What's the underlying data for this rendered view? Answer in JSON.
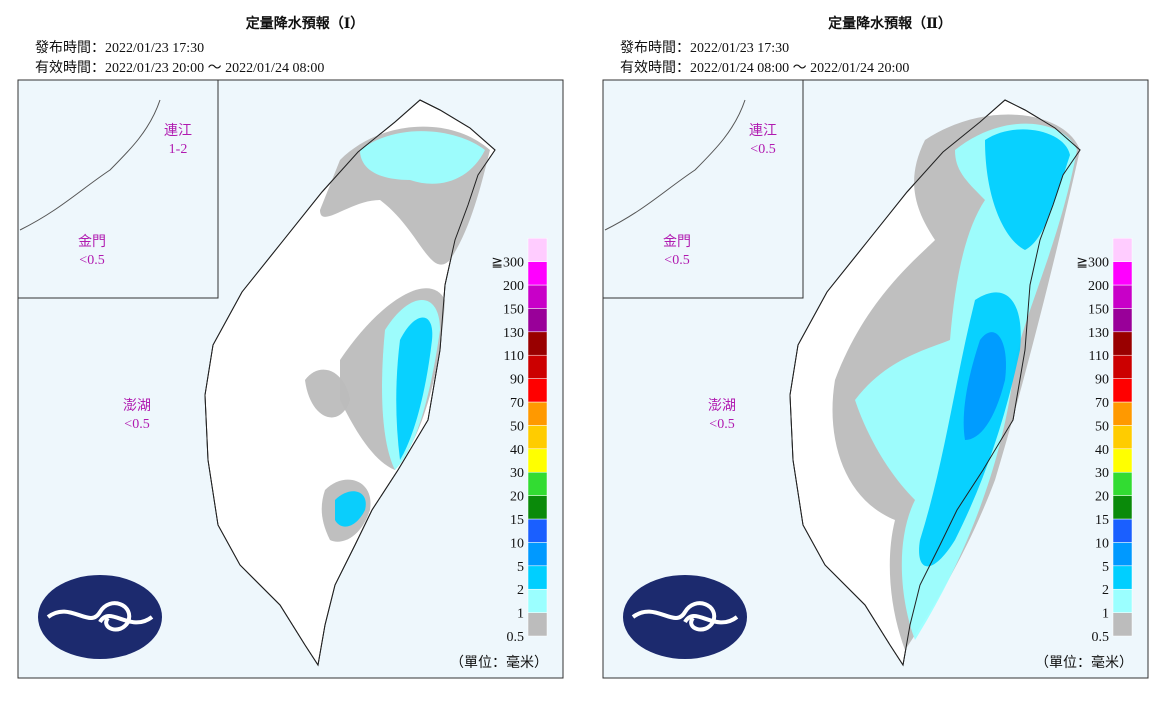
{
  "panels": [
    {
      "title": "定量降水預報（Ⅰ）",
      "issued": "發布時間：2022/01/23 17:30",
      "valid": "有效時間：2022/01/23 20:00 ～ 2022/01/24 08:00",
      "islands": [
        {
          "name": "連江",
          "amount": "1-2"
        },
        {
          "name": "金門",
          "amount": "<0.5"
        },
        {
          "name": "澎湖",
          "amount": "<0.5"
        }
      ]
    },
    {
      "title": "定量降水預報（Ⅱ）",
      "issued": "發布時間：2022/01/23 17:30",
      "valid": "有效時間：2022/01/24 08:00 ～ 2022/01/24 20:00",
      "islands": [
        {
          "name": "連江",
          "amount": "<0.5"
        },
        {
          "name": "金門",
          "amount": "<0.5"
        },
        {
          "name": "澎湖",
          "amount": "<0.5"
        }
      ]
    }
  ],
  "legend": {
    "labels": [
      "0.5",
      "1",
      "2",
      "5",
      "10",
      "15",
      "20",
      "30",
      "40",
      "50",
      "70",
      "90",
      "110",
      "130",
      "150",
      "200",
      "≧300"
    ],
    "colors": [
      "#bcbcbc",
      "#9bffff",
      "#00cfff",
      "#0099ff",
      "#1a5fff",
      "#0a8a0a",
      "#32dc32",
      "#ffff00",
      "#ffcc00",
      "#ff9900",
      "#ff0000",
      "#cc0000",
      "#990000",
      "#990099",
      "#c800c8",
      "#ff00ff",
      "#ffccff"
    ],
    "unit": "（單位：毫米）"
  }
}
